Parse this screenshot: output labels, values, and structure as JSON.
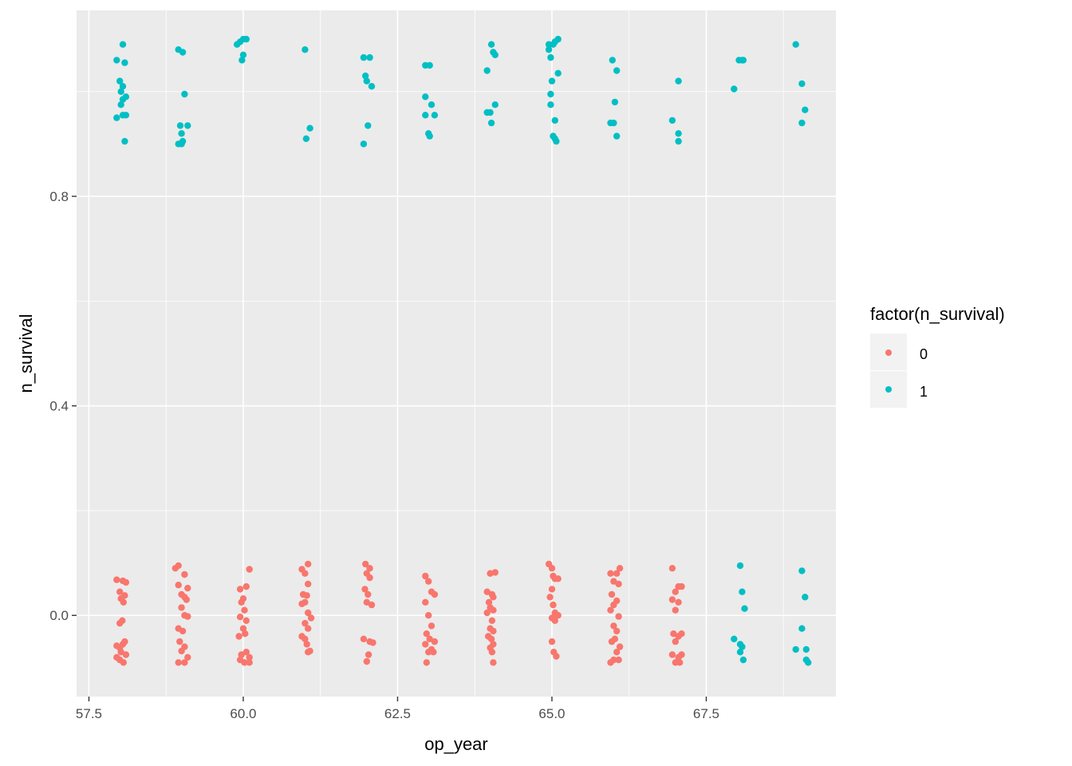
{
  "chart_data": {
    "type": "scatter",
    "title": "",
    "xlabel": "op_year",
    "ylabel": "n_survival",
    "xlim": [
      57.3,
      69.6
    ],
    "ylim": [
      -0.155,
      1.155
    ],
    "x_ticks": [
      57.5,
      60.0,
      62.5,
      65.0,
      67.5
    ],
    "x_tick_labels": [
      "57.5",
      "60.0",
      "62.5",
      "65.0",
      "67.5"
    ],
    "y_ticks": [
      0.0,
      0.4,
      0.8
    ],
    "y_tick_labels": [
      "0.0",
      "0.4",
      "0.8"
    ],
    "grid": true,
    "legend": {
      "title": "factor(n_survival)",
      "position": "right",
      "entries": [
        {
          "label": "0",
          "color": "#F8766D"
        },
        {
          "label": "1",
          "color": "#00BFC4"
        }
      ]
    },
    "series": [
      {
        "name": "0",
        "color": "#F8766D",
        "points": [
          [
            57.95,
            0.068
          ],
          [
            58.05,
            0.066
          ],
          [
            58.1,
            0.063
          ],
          [
            58.0,
            0.045
          ],
          [
            58.08,
            0.038
          ],
          [
            58.02,
            0.032
          ],
          [
            58.06,
            0.025
          ],
          [
            58.04,
            -0.01
          ],
          [
            58.0,
            -0.015
          ],
          [
            57.95,
            -0.058
          ],
          [
            58.05,
            -0.055
          ],
          [
            58.08,
            -0.05
          ],
          [
            58.0,
            -0.062
          ],
          [
            58.02,
            -0.07
          ],
          [
            58.1,
            -0.075
          ],
          [
            57.95,
            -0.08
          ],
          [
            58.06,
            -0.09
          ],
          [
            58.0,
            -0.085
          ],
          [
            58.9,
            0.09
          ],
          [
            58.95,
            0.095
          ],
          [
            59.05,
            0.078
          ],
          [
            59.1,
            0.052
          ],
          [
            58.95,
            0.058
          ],
          [
            59.0,
            0.04
          ],
          [
            59.05,
            0.035
          ],
          [
            59.08,
            0.03
          ],
          [
            59.0,
            0.015
          ],
          [
            59.05,
            0.0
          ],
          [
            59.1,
            -0.002
          ],
          [
            58.95,
            -0.025
          ],
          [
            59.02,
            -0.03
          ],
          [
            58.97,
            -0.05
          ],
          [
            59.05,
            -0.06
          ],
          [
            59.0,
            -0.068
          ],
          [
            59.1,
            -0.08
          ],
          [
            58.95,
            -0.09
          ],
          [
            59.05,
            -0.09
          ],
          [
            60.1,
            0.088
          ],
          [
            59.95,
            0.05
          ],
          [
            60.05,
            0.055
          ],
          [
            60.0,
            0.032
          ],
          [
            59.97,
            0.025
          ],
          [
            60.02,
            0.01
          ],
          [
            59.95,
            -0.003
          ],
          [
            60.05,
            -0.01
          ],
          [
            60.0,
            -0.025
          ],
          [
            59.93,
            -0.04
          ],
          [
            60.03,
            -0.035
          ],
          [
            59.97,
            -0.075
          ],
          [
            60.05,
            -0.07
          ],
          [
            60.1,
            -0.08
          ],
          [
            59.95,
            -0.085
          ],
          [
            60.02,
            -0.09
          ],
          [
            60.1,
            -0.09
          ],
          [
            61.05,
            0.098
          ],
          [
            61.0,
            0.08
          ],
          [
            60.95,
            0.088
          ],
          [
            61.05,
            0.06
          ],
          [
            60.97,
            0.04
          ],
          [
            61.03,
            0.038
          ],
          [
            61.0,
            0.025
          ],
          [
            60.95,
            0.022
          ],
          [
            61.05,
            0.005
          ],
          [
            61.1,
            -0.005
          ],
          [
            61.0,
            -0.015
          ],
          [
            61.05,
            -0.025
          ],
          [
            60.95,
            -0.04
          ],
          [
            61.0,
            -0.045
          ],
          [
            61.03,
            -0.055
          ],
          [
            61.08,
            -0.068
          ],
          [
            61.05,
            -0.07
          ],
          [
            61.98,
            0.098
          ],
          [
            62.05,
            0.09
          ],
          [
            62.0,
            0.08
          ],
          [
            62.05,
            0.072
          ],
          [
            61.97,
            0.05
          ],
          [
            62.02,
            0.04
          ],
          [
            62.0,
            0.025
          ],
          [
            62.08,
            0.02
          ],
          [
            61.95,
            -0.045
          ],
          [
            62.05,
            -0.05
          ],
          [
            62.1,
            -0.052
          ],
          [
            62.03,
            -0.075
          ],
          [
            62.0,
            -0.088
          ],
          [
            62.95,
            0.075
          ],
          [
            63.0,
            0.065
          ],
          [
            63.05,
            0.045
          ],
          [
            63.1,
            0.04
          ],
          [
            62.95,
            0.025
          ],
          [
            63.0,
            0.0
          ],
          [
            63.05,
            -0.02
          ],
          [
            62.97,
            -0.035
          ],
          [
            63.02,
            -0.045
          ],
          [
            63.1,
            -0.05
          ],
          [
            62.95,
            -0.055
          ],
          [
            63.05,
            -0.065
          ],
          [
            63.0,
            -0.07
          ],
          [
            63.08,
            -0.07
          ],
          [
            62.97,
            -0.09
          ],
          [
            64.0,
            0.08
          ],
          [
            64.08,
            0.082
          ],
          [
            63.95,
            0.045
          ],
          [
            64.03,
            0.04
          ],
          [
            64.05,
            0.035
          ],
          [
            63.98,
            0.025
          ],
          [
            64.0,
            0.015
          ],
          [
            64.05,
            0.01
          ],
          [
            63.95,
            0.005
          ],
          [
            64.03,
            -0.01
          ],
          [
            64.0,
            -0.025
          ],
          [
            64.05,
            -0.03
          ],
          [
            63.97,
            -0.04
          ],
          [
            64.02,
            -0.045
          ],
          [
            64.05,
            -0.055
          ],
          [
            64.0,
            -0.062
          ],
          [
            64.03,
            -0.07
          ],
          [
            64.05,
            -0.09
          ],
          [
            64.95,
            0.098
          ],
          [
            65.0,
            0.09
          ],
          [
            65.02,
            0.075
          ],
          [
            65.05,
            0.07
          ],
          [
            65.1,
            0.07
          ],
          [
            65.0,
            0.05
          ],
          [
            64.97,
            0.035
          ],
          [
            65.02,
            0.02
          ],
          [
            65.05,
            0.005
          ],
          [
            65.0,
            -0.005
          ],
          [
            65.1,
            0.0
          ],
          [
            65.05,
            -0.01
          ],
          [
            65.0,
            -0.05
          ],
          [
            65.03,
            -0.07
          ],
          [
            65.07,
            -0.078
          ],
          [
            65.95,
            0.08
          ],
          [
            66.1,
            0.09
          ],
          [
            66.05,
            0.08
          ],
          [
            66.0,
            0.065
          ],
          [
            66.08,
            0.06
          ],
          [
            65.97,
            0.04
          ],
          [
            66.05,
            0.028
          ],
          [
            66.0,
            0.02
          ],
          [
            65.95,
            0.01
          ],
          [
            66.08,
            -0.002
          ],
          [
            66.0,
            -0.02
          ],
          [
            66.05,
            -0.03
          ],
          [
            65.97,
            -0.05
          ],
          [
            66.02,
            -0.045
          ],
          [
            66.1,
            -0.06
          ],
          [
            66.05,
            -0.07
          ],
          [
            66.0,
            -0.085
          ],
          [
            65.95,
            -0.09
          ],
          [
            66.08,
            -0.085
          ],
          [
            66.95,
            0.09
          ],
          [
            67.05,
            0.055
          ],
          [
            67.1,
            0.055
          ],
          [
            67.0,
            0.045
          ],
          [
            66.95,
            0.03
          ],
          [
            67.05,
            0.025
          ],
          [
            67.0,
            0.01
          ],
          [
            66.97,
            -0.035
          ],
          [
            67.05,
            -0.04
          ],
          [
            67.1,
            -0.035
          ],
          [
            67.0,
            -0.05
          ],
          [
            66.95,
            -0.075
          ],
          [
            67.05,
            -0.08
          ],
          [
            67.1,
            -0.075
          ],
          [
            67.0,
            -0.09
          ],
          [
            67.07,
            -0.09
          ]
        ]
      },
      {
        "name": "1",
        "color": "#00BFC4",
        "points": [
          [
            58.05,
            1.09
          ],
          [
            57.95,
            1.06
          ],
          [
            58.08,
            1.055
          ],
          [
            58.0,
            1.02
          ],
          [
            58.05,
            1.01
          ],
          [
            58.02,
            1.0
          ],
          [
            58.1,
            0.99
          ],
          [
            58.05,
            0.985
          ],
          [
            58.02,
            0.975
          ],
          [
            57.95,
            0.95
          ],
          [
            58.05,
            0.955
          ],
          [
            58.1,
            0.955
          ],
          [
            58.08,
            0.905
          ],
          [
            58.95,
            1.08
          ],
          [
            59.02,
            1.075
          ],
          [
            59.05,
            0.995
          ],
          [
            58.98,
            0.935
          ],
          [
            59.1,
            0.935
          ],
          [
            59.0,
            0.92
          ],
          [
            59.02,
            0.905
          ],
          [
            58.95,
            0.9
          ],
          [
            59.0,
            0.9
          ],
          [
            59.95,
            1.095
          ],
          [
            60.0,
            1.1
          ],
          [
            59.9,
            1.09
          ],
          [
            60.05,
            1.1
          ],
          [
            60.0,
            1.07
          ],
          [
            59.98,
            1.06
          ],
          [
            61.0,
            1.08
          ],
          [
            61.08,
            0.93
          ],
          [
            61.02,
            0.91
          ],
          [
            61.95,
            1.065
          ],
          [
            62.05,
            1.065
          ],
          [
            61.98,
            1.03
          ],
          [
            62.0,
            1.02
          ],
          [
            62.08,
            1.01
          ],
          [
            62.02,
            0.935
          ],
          [
            61.95,
            0.9
          ],
          [
            62.95,
            1.05
          ],
          [
            63.02,
            1.05
          ],
          [
            62.95,
            0.99
          ],
          [
            63.05,
            0.975
          ],
          [
            62.95,
            0.955
          ],
          [
            63.1,
            0.955
          ],
          [
            63.0,
            0.92
          ],
          [
            63.02,
            0.915
          ],
          [
            64.02,
            1.09
          ],
          [
            64.05,
            1.075
          ],
          [
            64.08,
            1.07
          ],
          [
            63.95,
            1.04
          ],
          [
            64.08,
            0.975
          ],
          [
            64.0,
            0.96
          ],
          [
            63.95,
            0.96
          ],
          [
            64.02,
            0.94
          ],
          [
            64.95,
            1.09
          ],
          [
            65.02,
            1.09
          ],
          [
            65.1,
            1.1
          ],
          [
            65.05,
            1.095
          ],
          [
            64.95,
            1.08
          ],
          [
            64.98,
            1.065
          ],
          [
            65.1,
            1.035
          ],
          [
            65.0,
            1.02
          ],
          [
            64.98,
            0.995
          ],
          [
            64.98,
            0.975
          ],
          [
            65.05,
            0.945
          ],
          [
            65.02,
            0.915
          ],
          [
            65.05,
            0.91
          ],
          [
            65.07,
            0.905
          ],
          [
            65.98,
            1.06
          ],
          [
            66.05,
            1.04
          ],
          [
            66.02,
            0.98
          ],
          [
            65.95,
            0.94
          ],
          [
            66.0,
            0.94
          ],
          [
            66.05,
            0.915
          ],
          [
            67.05,
            1.02
          ],
          [
            66.95,
            0.945
          ],
          [
            67.05,
            0.92
          ],
          [
            67.05,
            0.905
          ],
          [
            67.95,
            1.005
          ],
          [
            68.03,
            1.06
          ],
          [
            68.08,
            1.06
          ],
          [
            68.1,
            1.06
          ],
          [
            68.05,
            0.095
          ],
          [
            68.08,
            0.045
          ],
          [
            68.12,
            0.013
          ],
          [
            67.95,
            -0.045
          ],
          [
            68.05,
            -0.055
          ],
          [
            68.08,
            -0.06
          ],
          [
            68.05,
            -0.07
          ],
          [
            68.1,
            -0.085
          ],
          [
            68.95,
            1.09
          ],
          [
            69.05,
            1.015
          ],
          [
            69.1,
            0.965
          ],
          [
            69.05,
            0.94
          ],
          [
            69.05,
            0.085
          ],
          [
            69.1,
            0.035
          ],
          [
            69.05,
            -0.025
          ],
          [
            68.95,
            -0.065
          ],
          [
            69.12,
            -0.065
          ],
          [
            69.12,
            -0.085
          ],
          [
            69.15,
            -0.09
          ]
        ]
      }
    ]
  }
}
